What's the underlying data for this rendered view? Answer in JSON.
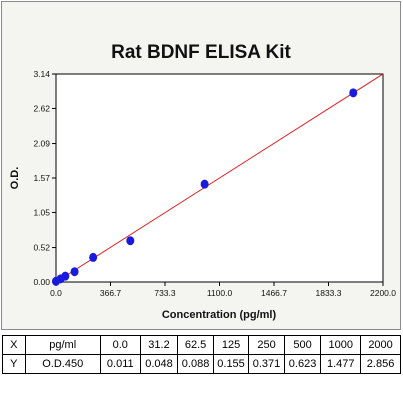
{
  "chart_data": {
    "type": "scatter",
    "title": "Rat BDNF ELISA Kit",
    "xlabel": "Concentration (pg/ml)",
    "ylabel": "O.D.",
    "xlim": [
      0,
      2200
    ],
    "ylim": [
      0,
      3.14
    ],
    "x_ticks": [
      "0.0",
      "366.7",
      "733.3",
      "1100.0",
      "1466.7",
      "1833.3",
      "2200.0"
    ],
    "y_ticks": [
      "0.00",
      "0.52",
      "1.05",
      "1.57",
      "2.09",
      "2.62",
      "3.14"
    ],
    "x_tick_values": [
      0,
      366.7,
      733.3,
      1100.0,
      1466.7,
      1833.3,
      2200.0
    ],
    "y_tick_values": [
      0,
      0.52,
      1.05,
      1.57,
      2.09,
      2.62,
      3.14
    ],
    "x": [
      0,
      31.2,
      62.5,
      125,
      250,
      500,
      1000,
      2000
    ],
    "y": [
      0.011,
      0.048,
      0.088,
      0.155,
      0.371,
      0.623,
      1.477,
      2.856
    ],
    "fit_line": {
      "x": [
        0,
        2200
      ],
      "y": [
        -0.02,
        3.17
      ]
    },
    "grid": false,
    "point_color": "#1a1adf",
    "line_color": "#e02020"
  },
  "table": {
    "rows": [
      [
        "X",
        "pg/ml",
        "0.0",
        "31.2",
        "62.5",
        "125",
        "250",
        "500",
        "1000",
        "2000"
      ],
      [
        "Y",
        "O.D.450",
        "0.011",
        "0.048",
        "0.088",
        "0.155",
        "0.371",
        "0.623",
        "1.477",
        "2.856"
      ]
    ]
  }
}
